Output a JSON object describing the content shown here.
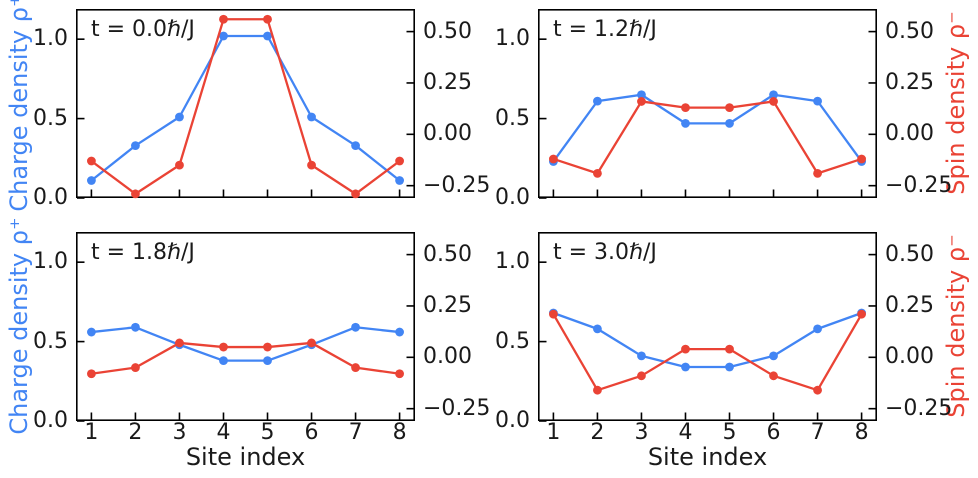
{
  "figure": {
    "background": "#ffffff",
    "axis_color": "#000000",
    "text_color": "#1a1a1a"
  },
  "chart_data": {
    "type": "line",
    "grid": [
      2,
      2
    ],
    "xlabel": "Site index",
    "left_ylabel": "Charge density ρ⁺",
    "right_ylabel": "Spin density ρ⁻",
    "x": [
      1,
      2,
      3,
      4,
      5,
      6,
      7,
      8
    ],
    "x_tick_labels": [
      "1",
      "2",
      "3",
      "4",
      "5",
      "6",
      "7",
      "8"
    ],
    "xlim": [
      0.65,
      8.35
    ],
    "left_ylim": [
      0.0,
      1.19
    ],
    "right_ylim": [
      -0.31,
      0.61
    ],
    "left_ticks": {
      "values": [
        0.0,
        0.5,
        1.0
      ],
      "labels": [
        "0.0",
        "0.5",
        "1.0"
      ]
    },
    "right_ticks": {
      "values": [
        0.5,
        0.25,
        0.0,
        -0.25
      ],
      "labels": [
        "0.50",
        "0.25",
        "0.00",
        "−0.25"
      ]
    },
    "legend": "none",
    "grid_lines": false,
    "colors": {
      "charge": "#4285F4",
      "spin": "#EA4335"
    },
    "panels": [
      {
        "title": "t = 0.0ℏ/J",
        "charge": [
          0.11,
          0.33,
          0.51,
          1.02,
          1.02,
          0.51,
          0.33,
          0.11
        ],
        "spin": [
          -0.13,
          -0.29,
          -0.15,
          0.56,
          0.56,
          -0.15,
          -0.29,
          -0.13
        ],
        "show_x_tick_labels": false
      },
      {
        "title": "t = 1.2ℏ/J",
        "charge": [
          0.23,
          0.61,
          0.65,
          0.47,
          0.47,
          0.65,
          0.61,
          0.23
        ],
        "spin": [
          -0.12,
          -0.19,
          0.16,
          0.13,
          0.13,
          0.16,
          -0.19,
          -0.12
        ],
        "show_x_tick_labels": false
      },
      {
        "title": "t = 1.8ℏ/J",
        "charge": [
          0.56,
          0.59,
          0.48,
          0.38,
          0.38,
          0.48,
          0.59,
          0.56
        ],
        "spin": [
          -0.08,
          -0.05,
          0.07,
          0.05,
          0.05,
          0.07,
          -0.05,
          -0.08
        ],
        "show_x_tick_labels": true
      },
      {
        "title": "t = 3.0ℏ/J",
        "charge": [
          0.68,
          0.58,
          0.41,
          0.34,
          0.34,
          0.41,
          0.58,
          0.68
        ],
        "spin": [
          0.21,
          -0.16,
          -0.09,
          0.04,
          0.04,
          -0.09,
          -0.16,
          0.21
        ],
        "show_x_tick_labels": true
      }
    ]
  }
}
